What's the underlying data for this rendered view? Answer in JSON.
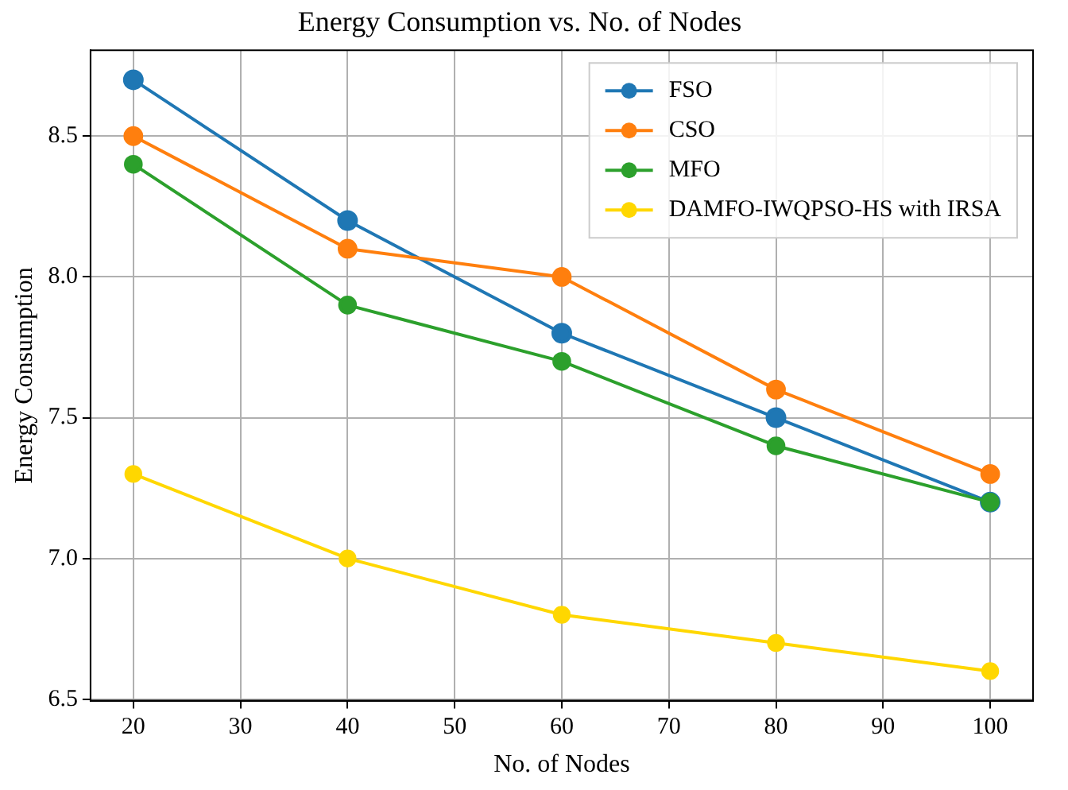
{
  "chart_data": {
    "type": "line",
    "title": "Energy Consumption vs. No. of Nodes",
    "xlabel": "No. of Nodes",
    "ylabel": "Energy Consumption",
    "x": [
      20,
      40,
      60,
      80,
      100
    ],
    "series": [
      {
        "name": "FSO",
        "color": "#1f77b4",
        "values": [
          8.7,
          8.2,
          7.8,
          7.5,
          7.2
        ]
      },
      {
        "name": "CSO",
        "color": "#ff7f0e",
        "values": [
          8.5,
          8.1,
          8.0,
          7.6,
          7.3
        ]
      },
      {
        "name": "MFO",
        "color": "#2ca02c",
        "values": [
          8.4,
          7.9,
          7.7,
          7.4,
          7.2
        ]
      },
      {
        "name": "DAMFO-IWQPSO-HS with IRSA",
        "color": "#ffd700",
        "values": [
          7.3,
          7.0,
          6.8,
          6.7,
          6.6
        ]
      }
    ],
    "xlim": [
      16,
      104
    ],
    "xticks": [
      20,
      30,
      40,
      50,
      60,
      70,
      80,
      90,
      100
    ],
    "ylim": [
      6.495,
      8.805
    ],
    "yticks": [
      6.5,
      {
        "value": 7,
        "label": "7.0"
      },
      7.5,
      {
        "value": 8,
        "label": "8.0"
      },
      8.5
    ],
    "grid": true,
    "legend": "top right",
    "marker": "circle",
    "line_style": "solid"
  }
}
